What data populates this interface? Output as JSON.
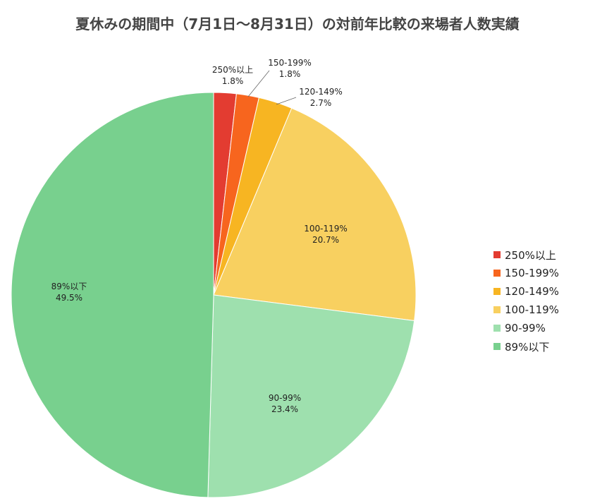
{
  "chart_data": {
    "type": "pie",
    "title": "夏休みの期間中（7月1日〜8月31日）の対前年比較の来場者人数実績",
    "slices": [
      {
        "label": "250%以上",
        "value": 1.8,
        "value_label": "1.8%",
        "color": "#e33c31"
      },
      {
        "label": "150-199%",
        "value": 1.8,
        "value_label": "1.8%",
        "color": "#f7651e"
      },
      {
        "label": "120-149%",
        "value": 2.7,
        "value_label": "2.7%",
        "color": "#f7b522"
      },
      {
        "label": "100-119%",
        "value": 20.7,
        "value_label": "20.7%",
        "color": "#f8d060"
      },
      {
        "label": "90-99%",
        "value": 23.4,
        "value_label": "23.4%",
        "color": "#9ee0ae"
      },
      {
        "label": "89%以下",
        "value": 49.5,
        "value_label": "49.5%",
        "color": "#78d08e"
      }
    ],
    "legend_position": "right"
  }
}
